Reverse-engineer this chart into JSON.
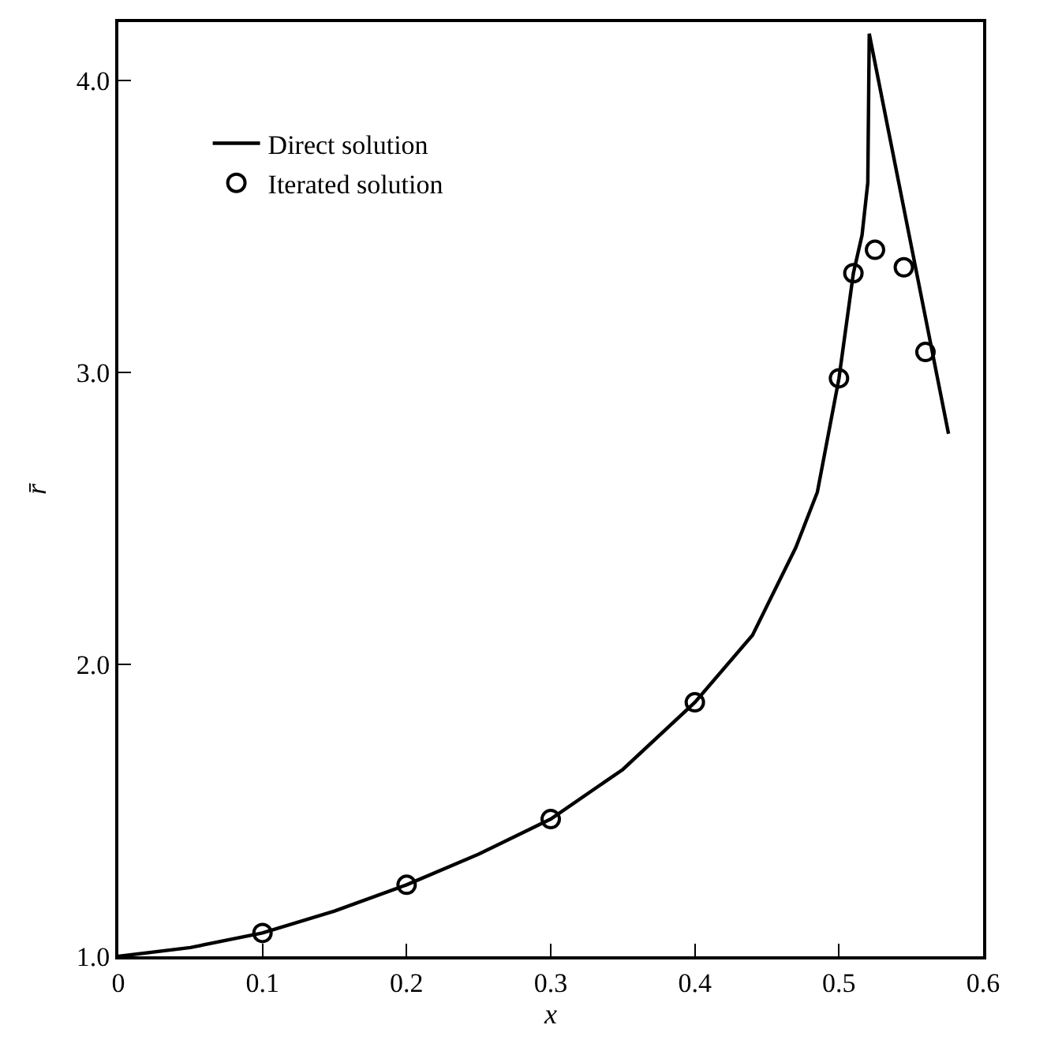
{
  "chart_data": {
    "type": "line",
    "xlabel": "x",
    "ylabel": "r̄",
    "xlim": [
      0,
      0.6
    ],
    "xticks": [
      0,
      0.1,
      0.2,
      0.3,
      0.4,
      0.5,
      0.6
    ],
    "ylim": [
      1.0,
      4.2
    ],
    "yticks": [
      {
        "value": 1,
        "label": "1.0"
      },
      {
        "value": 2,
        "label": "2.0"
      },
      {
        "value": 3,
        "label": "3.0"
      },
      {
        "value": 4,
        "label": "4.0"
      }
    ],
    "grid": false,
    "legend": "top left",
    "series": [
      {
        "name": "Direct solution",
        "color": "#000000",
        "marker": "none",
        "line_style": "solid",
        "x": [
          0,
          0.05,
          0.1,
          0.15,
          0.2,
          0.25,
          0.3,
          0.35,
          0.4,
          0.44,
          0.47,
          0.485,
          0.5,
          0.51,
          0.516,
          0.52,
          0.521,
          0.576
        ],
        "values": [
          1.0,
          1.03,
          1.08,
          1.155,
          1.245,
          1.35,
          1.47,
          1.64,
          1.87,
          2.1,
          2.4,
          2.59,
          2.98,
          3.34,
          3.47,
          3.65,
          4.16,
          2.79
        ]
      },
      {
        "name": "Iterated solution",
        "type": "scatter",
        "color": "#000000",
        "marker": "circle",
        "x": [
          0.1,
          0.2,
          0.3,
          0.4,
          0.5,
          0.51,
          0.525,
          0.545,
          0.56
        ],
        "values": [
          1.08,
          1.245,
          1.47,
          1.87,
          2.98,
          3.34,
          3.42,
          3.36,
          3.07
        ]
      }
    ]
  }
}
